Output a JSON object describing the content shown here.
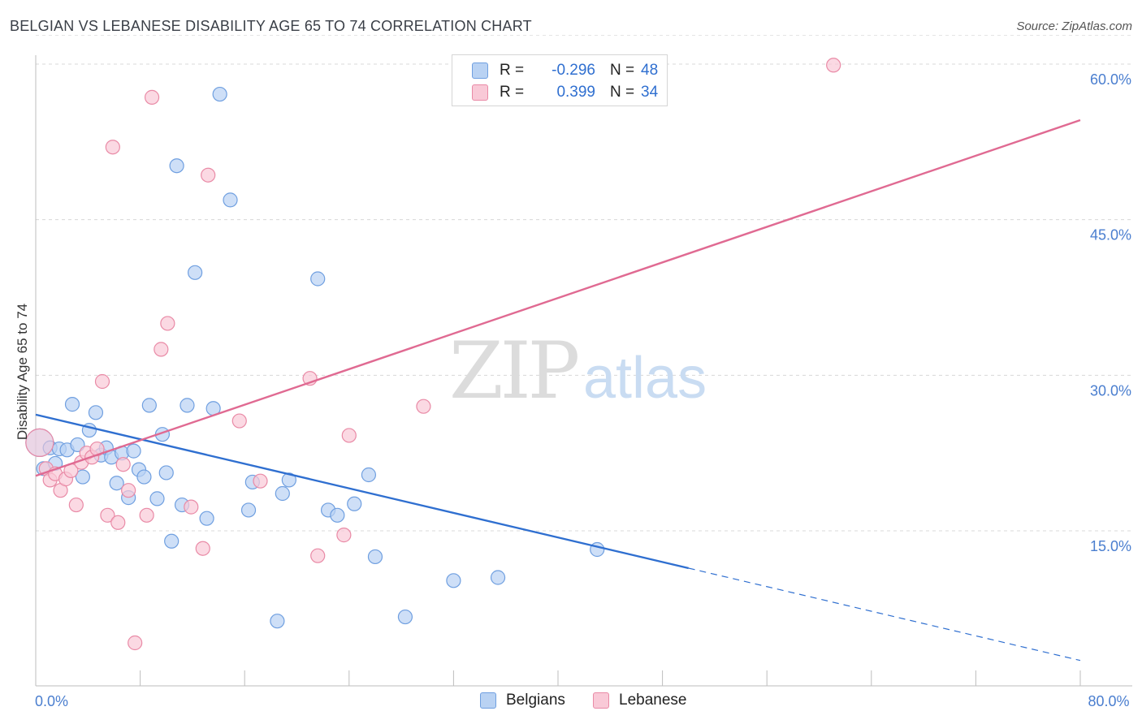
{
  "title": "BELGIAN VS LEBANESE DISABILITY AGE 65 TO 74 CORRELATION CHART",
  "source": "Source: ZipAtlas.com",
  "watermark": {
    "zip": "ZIP",
    "atlas": "atlas"
  },
  "legend": {
    "rows": [
      {
        "swatch_fill": "#b9d2f3",
        "swatch_stroke": "#6f9fe0",
        "r_label": "R =",
        "r_value": "-0.296",
        "n_label": "N =",
        "n_value": "48"
      },
      {
        "swatch_fill": "#f9c9d7",
        "swatch_stroke": "#e98aa6",
        "r_label": "R =",
        "r_value": "0.399",
        "n_label": "N =",
        "n_value": "34"
      }
    ]
  },
  "bottom_legend": [
    {
      "label": "Belgians",
      "swatch_fill": "#b9d2f3",
      "swatch_stroke": "#6f9fe0"
    },
    {
      "label": "Lebanese",
      "swatch_fill": "#f9c9d7",
      "swatch_stroke": "#e98aa6"
    }
  ],
  "chart_data": {
    "type": "scatter",
    "title": "BELGIAN VS LEBANESE DISABILITY AGE 65 TO 74 CORRELATION CHART",
    "xlabel": "",
    "ylabel": "Disability Age 65 to 74",
    "xlim": [
      0,
      80
    ],
    "ylim": [
      0,
      63
    ],
    "x_tick_labels": [
      {
        "value": 0,
        "label": "0.0%"
      },
      {
        "value": 80,
        "label": "80.0%"
      }
    ],
    "x_minor_ticks": [
      0,
      8,
      16,
      24,
      32,
      40,
      48,
      56,
      64,
      72,
      80
    ],
    "y_ticks": [
      {
        "value": 15,
        "label": "15.0%"
      },
      {
        "value": 30,
        "label": "30.0%"
      },
      {
        "value": 45,
        "label": "45.0%"
      },
      {
        "value": 60,
        "label": "60.0%"
      }
    ],
    "colors": {
      "belgians": "#2f6fd0",
      "lebanese": "#e06a92",
      "belgians_fill": "#b9d2f3",
      "lebanese_fill": "#f9c9d7"
    },
    "series": [
      {
        "name": "Belgians",
        "r": -0.296,
        "n": 48,
        "points": [
          [
            0.3,
            23.5
          ],
          [
            0.6,
            21.0
          ],
          [
            1.1,
            23.0
          ],
          [
            1.5,
            21.5
          ],
          [
            1.8,
            22.9
          ],
          [
            2.4,
            22.8
          ],
          [
            2.8,
            27.2
          ],
          [
            3.2,
            23.3
          ],
          [
            3.6,
            20.2
          ],
          [
            4.1,
            24.7
          ],
          [
            4.6,
            26.4
          ],
          [
            5.0,
            22.3
          ],
          [
            5.4,
            23.0
          ],
          [
            5.8,
            22.1
          ],
          [
            6.2,
            19.6
          ],
          [
            6.6,
            22.5
          ],
          [
            7.1,
            18.2
          ],
          [
            7.5,
            22.7
          ],
          [
            7.9,
            20.9
          ],
          [
            8.3,
            20.2
          ],
          [
            8.7,
            27.1
          ],
          [
            9.3,
            18.1
          ],
          [
            9.7,
            24.3
          ],
          [
            10.0,
            20.6
          ],
          [
            10.4,
            14.0
          ],
          [
            10.8,
            50.2
          ],
          [
            11.2,
            17.5
          ],
          [
            11.6,
            27.1
          ],
          [
            12.2,
            39.9
          ],
          [
            13.1,
            16.2
          ],
          [
            13.6,
            26.8
          ],
          [
            14.1,
            57.1
          ],
          [
            14.9,
            46.9
          ],
          [
            16.3,
            17.0
          ],
          [
            16.6,
            19.7
          ],
          [
            18.5,
            6.3
          ],
          [
            18.9,
            18.6
          ],
          [
            19.4,
            19.9
          ],
          [
            21.6,
            39.3
          ],
          [
            22.4,
            17.0
          ],
          [
            23.1,
            16.5
          ],
          [
            24.4,
            17.6
          ],
          [
            25.5,
            20.4
          ],
          [
            26.0,
            12.5
          ],
          [
            28.3,
            6.7
          ],
          [
            32.0,
            10.2
          ],
          [
            35.4,
            10.5
          ],
          [
            43.0,
            13.2
          ]
        ]
      },
      {
        "name": "Lebanese",
        "r": 0.399,
        "n": 34,
        "points": [
          [
            0.3,
            23.5
          ],
          [
            0.8,
            21.0
          ],
          [
            1.1,
            19.9
          ],
          [
            1.5,
            20.5
          ],
          [
            1.9,
            18.9
          ],
          [
            2.3,
            20.0
          ],
          [
            2.7,
            20.8
          ],
          [
            3.1,
            17.5
          ],
          [
            3.5,
            21.6
          ],
          [
            3.9,
            22.5
          ],
          [
            4.3,
            22.1
          ],
          [
            4.7,
            22.9
          ],
          [
            5.1,
            29.4
          ],
          [
            5.5,
            16.5
          ],
          [
            5.9,
            52.0
          ],
          [
            6.3,
            15.8
          ],
          [
            6.7,
            21.4
          ],
          [
            7.1,
            18.9
          ],
          [
            7.6,
            4.2
          ],
          [
            8.5,
            16.5
          ],
          [
            8.9,
            56.8
          ],
          [
            9.6,
            32.5
          ],
          [
            10.1,
            35.0
          ],
          [
            11.9,
            17.3
          ],
          [
            12.8,
            13.3
          ],
          [
            13.2,
            49.3
          ],
          [
            15.6,
            25.6
          ],
          [
            17.2,
            19.8
          ],
          [
            21.0,
            29.7
          ],
          [
            21.6,
            12.6
          ],
          [
            23.6,
            14.6
          ],
          [
            24.0,
            24.2
          ],
          [
            29.7,
            27.0
          ],
          [
            61.1,
            59.9
          ]
        ]
      }
    ],
    "trendlines": [
      {
        "series": "Belgians",
        "solid": [
          [
            0,
            26.2
          ],
          [
            50,
            11.4
          ]
        ],
        "dashed": [
          [
            50,
            11.4
          ],
          [
            80,
            2.5
          ]
        ]
      },
      {
        "series": "Lebanese",
        "solid": [
          [
            0,
            20.3
          ],
          [
            80,
            54.6
          ]
        ]
      }
    ]
  }
}
